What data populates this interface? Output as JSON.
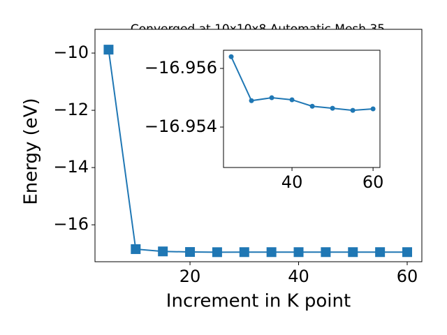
{
  "chart_data": [
    {
      "type": "line",
      "title": "Converged at 10x10x8 Automatic Mesh 35",
      "xlabel": "Increment in K point",
      "ylabel": "Energy (eV)",
      "x": [
        5,
        10,
        15,
        20,
        25,
        30,
        35,
        40,
        45,
        50,
        55,
        60
      ],
      "series": [
        {
          "name": "Energy",
          "color": "#1f77b4",
          "marker": "square",
          "values": [
            -9.88,
            -16.85,
            -16.93,
            -16.95,
            -16.9564,
            -16.9549,
            -16.955,
            -16.95493,
            -16.95471,
            -16.95464,
            -16.95457,
            -16.95462
          ]
        }
      ],
      "xlim": [
        2.5,
        62.7
      ],
      "ylim": [
        -17.29,
        -9.17
      ],
      "xticks": [
        20,
        40,
        60
      ],
      "yticks": [
        {
          "value": -10,
          "label": "−10"
        },
        {
          "value": -12,
          "label": "−12"
        },
        {
          "value": -14,
          "label": "−14"
        },
        {
          "value": -16,
          "label": "−16"
        }
      ]
    },
    {
      "type": "line",
      "x": [
        25,
        30,
        35,
        40,
        45,
        50,
        55,
        60
      ],
      "series": [
        {
          "name": "Energy",
          "color": "#1f77b4",
          "marker": "circle",
          "values": [
            -16.9564,
            -16.9549,
            -16.955,
            -16.95493,
            -16.95471,
            -16.95464,
            -16.95457,
            -16.95462
          ]
        }
      ],
      "xlim": [
        23.1,
        61.7
      ],
      "ylim": [
        -16.95262,
        -16.95662
      ],
      "xticks": [
        40,
        60
      ],
      "yticks": [
        {
          "value": -16.956,
          "label": "−16.956"
        },
        {
          "value": -16.954,
          "label": "−16.954"
        }
      ]
    }
  ]
}
